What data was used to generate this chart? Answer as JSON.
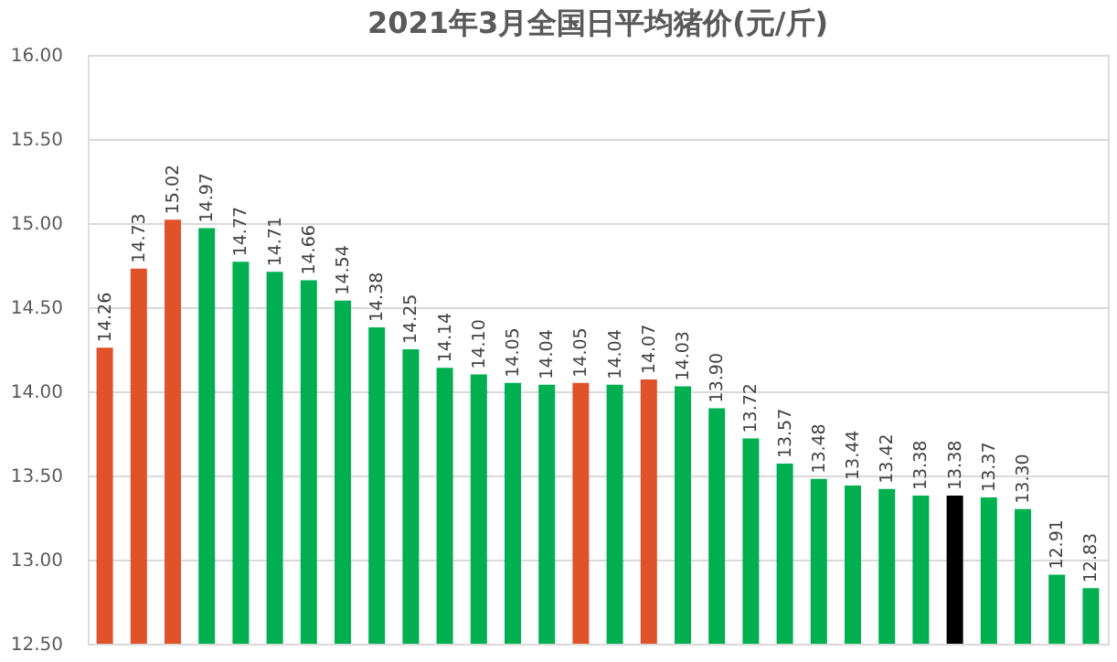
{
  "chart_data": {
    "type": "bar",
    "title": "2021年3月全国日平均猪价(元/斤)",
    "categories": [
      null,
      null,
      null,
      null,
      null,
      null,
      null,
      null,
      null,
      null,
      null,
      null,
      null,
      null,
      null,
      null,
      null,
      null,
      null,
      null,
      null,
      null,
      null,
      null,
      null,
      null,
      null,
      null,
      null,
      null
    ],
    "values": [
      14.26,
      14.73,
      15.02,
      14.97,
      14.77,
      14.71,
      14.66,
      14.54,
      14.38,
      14.25,
      14.14,
      14.1,
      14.05,
      14.04,
      14.05,
      14.04,
      14.07,
      14.03,
      13.9,
      13.72,
      13.57,
      13.48,
      13.44,
      13.42,
      13.38,
      13.38,
      13.37,
      13.3,
      12.91,
      12.83
    ],
    "colors": [
      "#e0522a",
      "#e0522a",
      "#e0522a",
      "#00b050",
      "#00b050",
      "#00b050",
      "#00b050",
      "#00b050",
      "#00b050",
      "#00b050",
      "#00b050",
      "#00b050",
      "#00b050",
      "#00b050",
      "#e0522a",
      "#00b050",
      "#e0522a",
      "#00b050",
      "#00b050",
      "#00b050",
      "#00b050",
      "#00b050",
      "#00b050",
      "#00b050",
      "#00b050",
      "#000000",
      "#00b050",
      "#00b050",
      "#00b050",
      "#00b050"
    ],
    "ylim": [
      12.5,
      16.0
    ],
    "yticks": [
      {
        "value": 12.5,
        "label": "12.50"
      },
      {
        "value": 13.0,
        "label": "13.00"
      },
      {
        "value": 13.5,
        "label": "13.50"
      },
      {
        "value": 14.0,
        "label": "14.00"
      },
      {
        "value": 14.5,
        "label": "14.50"
      },
      {
        "value": 15.0,
        "label": "15.00"
      },
      {
        "value": 15.5,
        "label": "15.50"
      },
      {
        "value": 16.0,
        "label": "16.00"
      }
    ],
    "value_labels": [
      "14.26",
      "14.73",
      "15.02",
      "14.97",
      "14.77",
      "14.71",
      "14.66",
      "14.54",
      "14.38",
      "14.25",
      "14.14",
      "14.10",
      "14.05",
      "14.04",
      "14.05",
      "14.04",
      "14.07",
      "14.03",
      "13.90",
      "13.72",
      "13.57",
      "13.48",
      "13.44",
      "13.42",
      "13.38",
      "13.38",
      "13.37",
      "13.30",
      "12.91",
      "12.83"
    ],
    "grid": "y"
  }
}
